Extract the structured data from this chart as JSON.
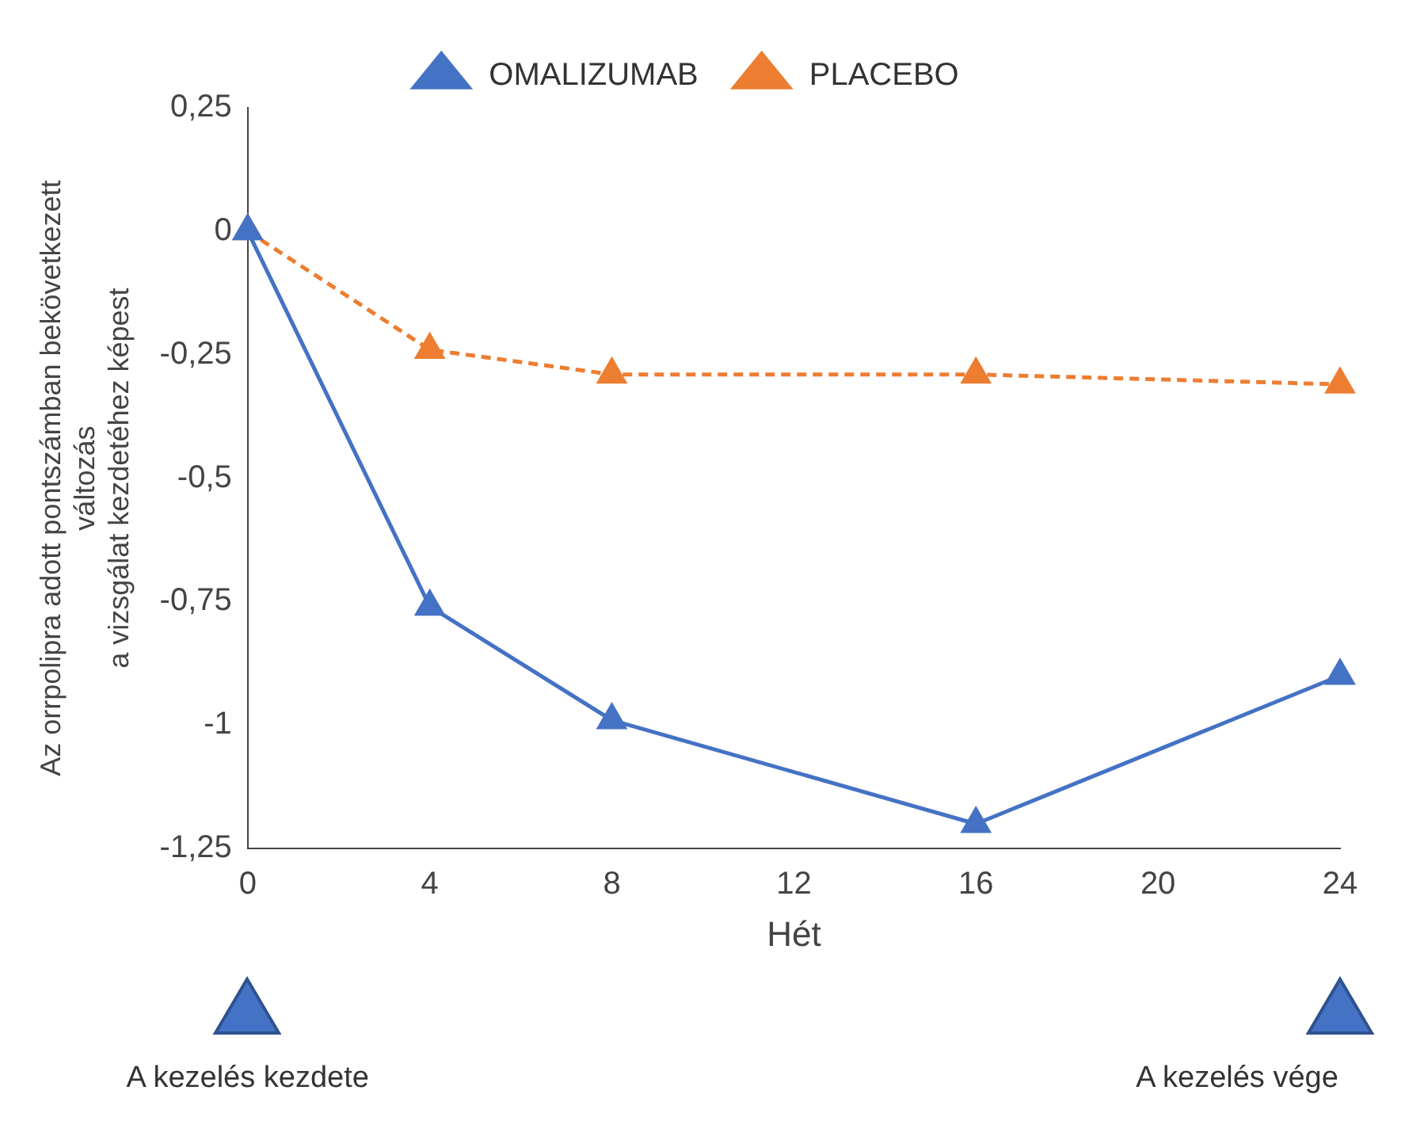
{
  "chart_data": {
    "type": "line",
    "xlabel": "Hét",
    "ylabel": "Az orrpolipra adott pontszámban bekövetkezett\nváltozás\na vizsgálat kezdetéhez képest",
    "categories": [
      "0",
      "4",
      "8",
      "12",
      "16",
      "20",
      "24"
    ],
    "series": [
      {
        "name": "OMALIZUMAB",
        "color": "#4472c4",
        "line_style": "solid",
        "values": [
          0,
          -0.76,
          -0.99,
          null,
          -1.2,
          null,
          -0.9
        ]
      },
      {
        "name": "PLACEBO",
        "color": "#ed7d31",
        "line_style": "dashed",
        "values": [
          0,
          -0.24,
          -0.29,
          null,
          -0.29,
          null,
          -0.31
        ]
      }
    ],
    "ylim": [
      -1.25,
      0.25
    ],
    "yticks": [
      {
        "value": 0.25,
        "label": "0,25"
      },
      0,
      {
        "value": -0.25,
        "label": "-0,25"
      },
      {
        "value": -0.5,
        "label": "-0,5"
      },
      {
        "value": -0.75,
        "label": "-0,75"
      },
      -1,
      {
        "value": -1.25,
        "label": "-1,25"
      }
    ],
    "grid": false,
    "legend": "top",
    "marker": "triangle",
    "annotations": [
      "A kezelés kezdete",
      "A kezelés vége"
    ]
  }
}
